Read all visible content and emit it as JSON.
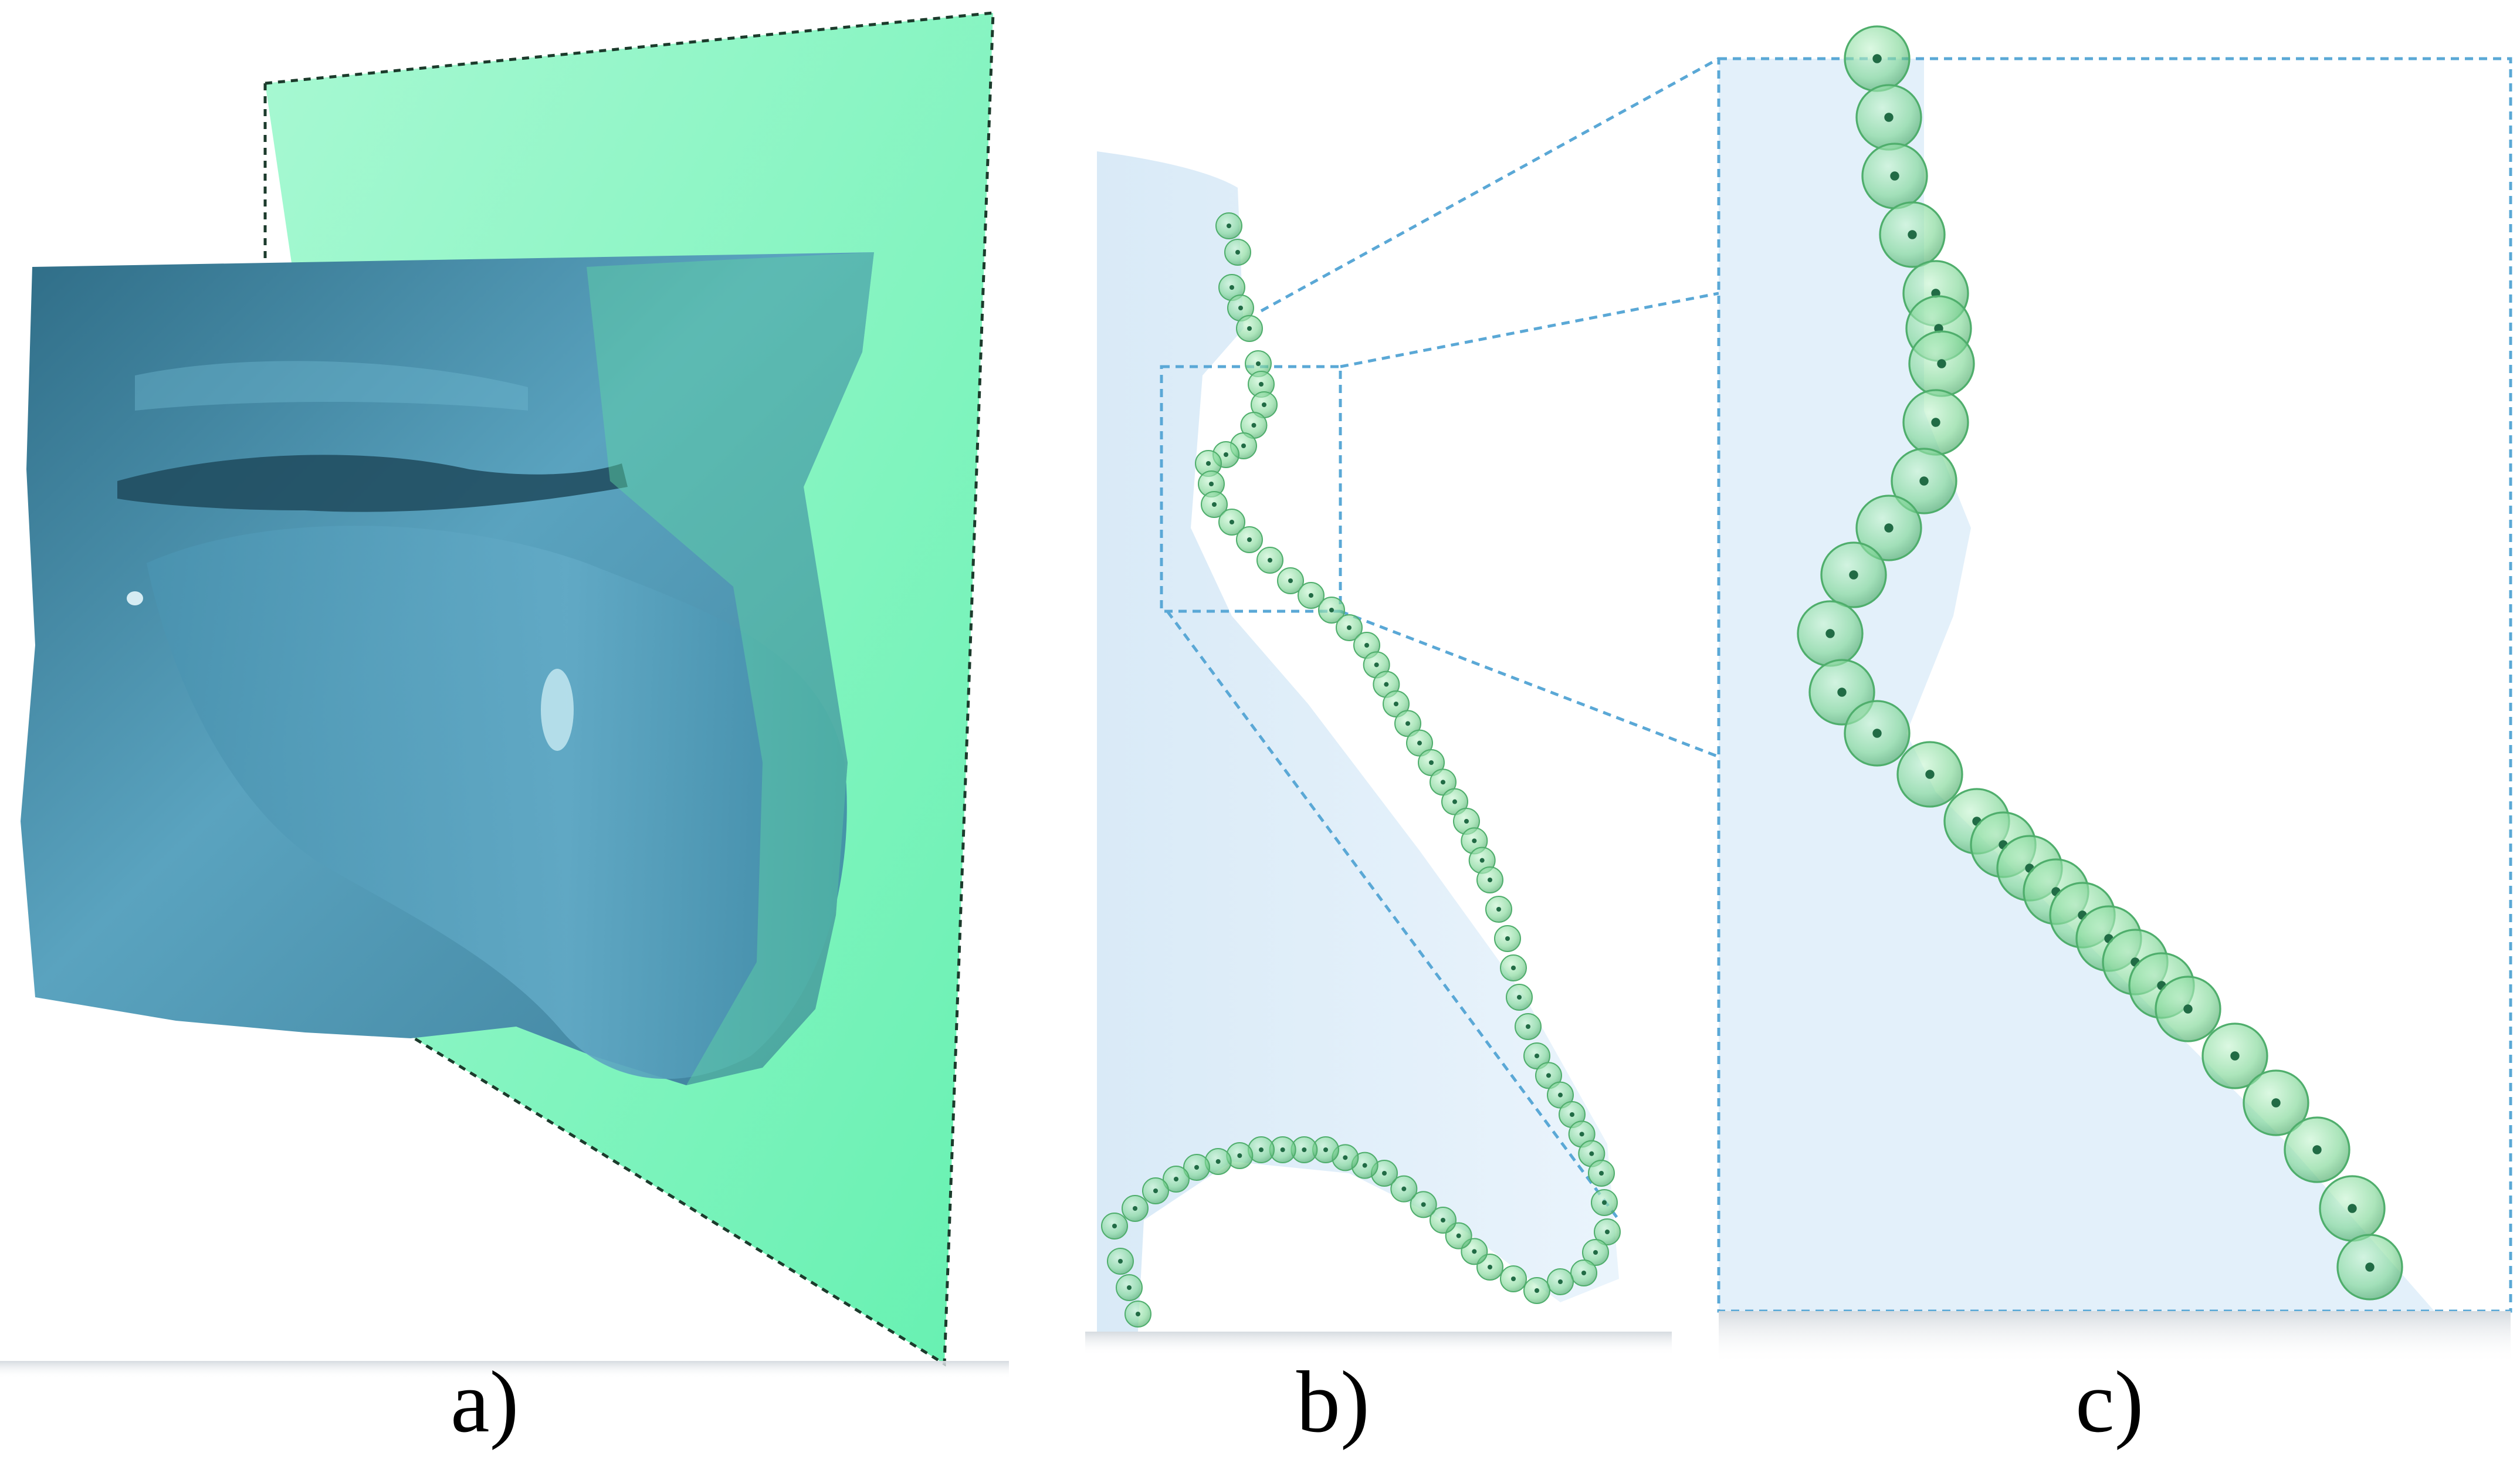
{
  "captions": {
    "a": "a)",
    "b": "b)",
    "c": "c)"
  },
  "colors": {
    "surface_dark": "#3d7f9a",
    "surface_mid": "#5aa3bf",
    "surface_light": "#7dc3d9",
    "cutting_plane": "#6ff2b8",
    "cutting_plane_light": "#98f8c9",
    "panel_background": "#e3f0fa",
    "sphere_fill": "#8ee0a4",
    "sphere_stroke": "#4fae6c",
    "sphere_center": "#216b45",
    "guide_line": "#5aa8d6",
    "plane_outline": "#1c3b2c"
  },
  "panels": [
    {
      "id": "a",
      "content": "surface-with-cutting-plane"
    },
    {
      "id": "b",
      "content": "cross-section-with-spheres"
    },
    {
      "id": "c",
      "content": "zoomed-detail"
    }
  ]
}
